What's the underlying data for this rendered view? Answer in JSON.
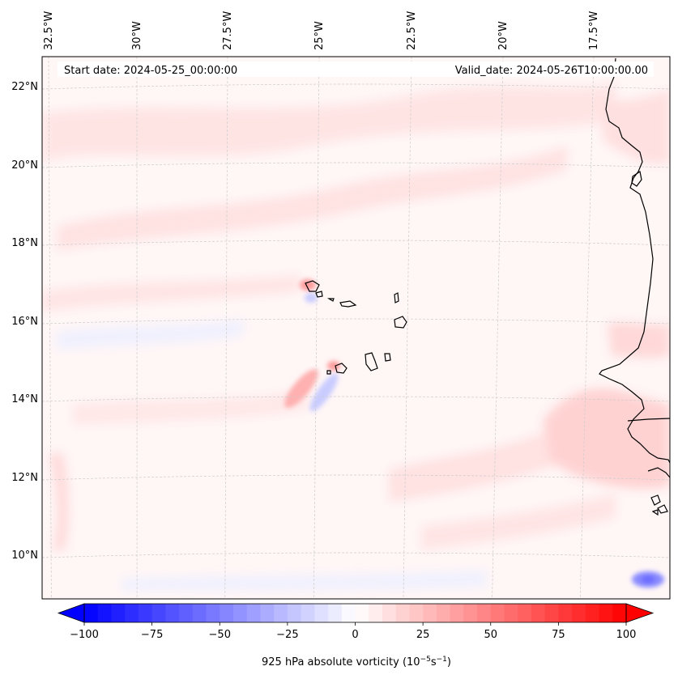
{
  "map": {
    "start_date": "Start date: 2024-05-25_00:00:00",
    "valid_date": "Valid_date: 2024-05-26T10:00:00.00",
    "lon_labels": [
      "32.5°W",
      "30°W",
      "27.5°W",
      "25°W",
      "22.5°W",
      "20°W",
      "17.5°W"
    ],
    "lat_labels": [
      "22°N",
      "20°N",
      "18°N",
      "16°N",
      "14°N",
      "12°N",
      "10°N"
    ],
    "ocean_color": "#fff6f6",
    "pos_color": "#ff0000",
    "neg_color": "#0000ff"
  },
  "colorbar": {
    "label": "925 hPa absolute vorticity (10",
    "exp1": "−5",
    "mid": "s",
    "exp2": "−1",
    "close": ")",
    "min": -100,
    "max": 100,
    "levels": 40,
    "tick_values": [
      -100,
      -75,
      -50,
      -25,
      0,
      25,
      50,
      75,
      100
    ],
    "tick_labels": [
      "−100",
      "−75",
      "−50",
      "−25",
      "0",
      "25",
      "50",
      "75",
      "100"
    ]
  }
}
